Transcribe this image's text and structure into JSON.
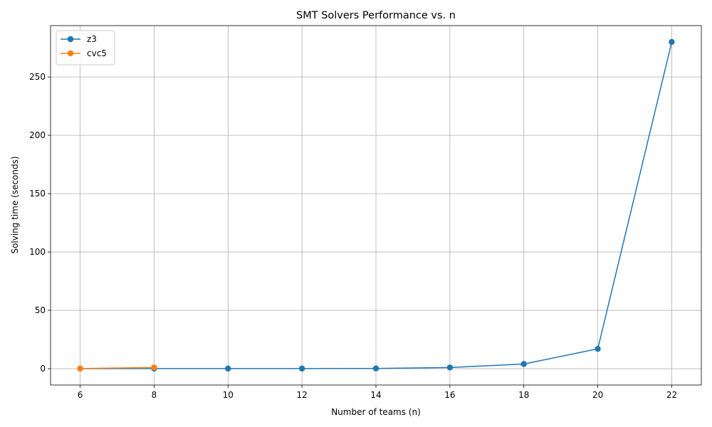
{
  "chart_data": {
    "type": "line",
    "title": "SMT Solvers Performance vs. n",
    "xlabel": "Number of teams (n)",
    "ylabel": "Solving time (seconds)",
    "xlim": [
      5.2,
      22.8
    ],
    "ylim": [
      -14,
      294
    ],
    "xticks": [
      6,
      8,
      10,
      12,
      14,
      16,
      18,
      20,
      22
    ],
    "yticks": [
      0,
      50,
      100,
      150,
      200,
      250
    ],
    "grid": true,
    "legend_position": "top-left",
    "series": [
      {
        "name": "z3",
        "color": "#1f77b4",
        "x": [
          6,
          8,
          10,
          12,
          14,
          16,
          18,
          20,
          22
        ],
        "y": [
          0.05,
          0.1,
          0.1,
          0.1,
          0.2,
          1.0,
          4.0,
          17.0,
          280.0
        ]
      },
      {
        "name": "cvc5",
        "color": "#ff7f0e",
        "x": [
          6,
          8
        ],
        "y": [
          0.1,
          1.0
        ]
      }
    ]
  }
}
